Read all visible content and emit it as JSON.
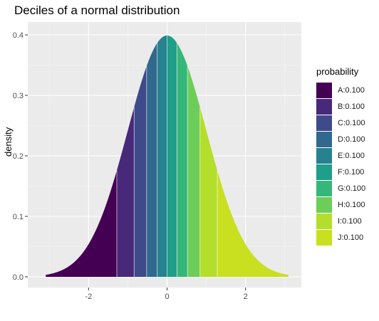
{
  "chart_data": {
    "type": "area",
    "title": "Deciles of a normal distribution",
    "xlabel": "",
    "ylabel": "density",
    "xlim": [
      -3.1,
      3.1
    ],
    "ylim": [
      0,
      0.4
    ],
    "x_ticks": [
      -2,
      0,
      2
    ],
    "x_tick_labels": [
      "-2",
      "0",
      "2"
    ],
    "y_ticks": [
      0.0,
      0.1,
      0.2,
      0.3,
      0.4
    ],
    "y_tick_labels": [
      "0.0",
      "0.1",
      "0.2",
      "0.3",
      "0.4"
    ],
    "grid": true,
    "curve": "standard normal density",
    "legend_title": "probability",
    "legend_position": "right",
    "series": [
      {
        "name": "A:0.100",
        "x_range": [
          -3.09,
          -1.28
        ],
        "probability": 0.1,
        "color": "#440154"
      },
      {
        "name": "B:0.100",
        "x_range": [
          -1.28,
          -0.84
        ],
        "probability": 0.1,
        "color": "#482878"
      },
      {
        "name": "C:0.100",
        "x_range": [
          -0.84,
          -0.52
        ],
        "probability": 0.1,
        "color": "#3E4A89"
      },
      {
        "name": "D:0.100",
        "x_range": [
          -0.52,
          -0.25
        ],
        "probability": 0.1,
        "color": "#31688E"
      },
      {
        "name": "E:0.100",
        "x_range": [
          -0.25,
          0.0
        ],
        "probability": 0.1,
        "color": "#26828E"
      },
      {
        "name": "F:0.100",
        "x_range": [
          0.0,
          0.25
        ],
        "probability": 0.1,
        "color": "#1F9E89"
      },
      {
        "name": "G:0.100",
        "x_range": [
          0.25,
          0.52
        ],
        "probability": 0.1,
        "color": "#35B779"
      },
      {
        "name": "H:0.100",
        "x_range": [
          0.52,
          0.84
        ],
        "probability": 0.1,
        "color": "#6DCD59"
      },
      {
        "name": "I:0.100",
        "x_range": [
          0.84,
          1.28
        ],
        "probability": 0.1,
        "color": "#B4DE2C"
      },
      {
        "name": "J:0.100",
        "x_range": [
          1.28,
          3.09
        ],
        "probability": 0.1,
        "color": "#C8E020"
      }
    ]
  }
}
